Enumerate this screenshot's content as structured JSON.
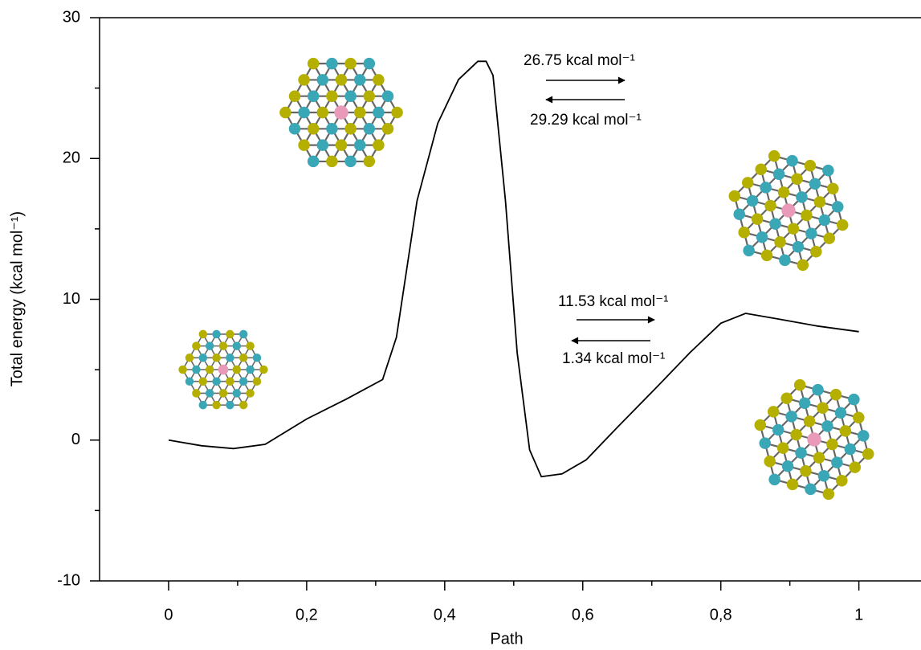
{
  "chart_data": {
    "type": "line",
    "xlabel": "Path",
    "ylabel": "Total energy (kcal mol⁻¹)",
    "x": [
      0,
      0.048,
      0.094,
      0.14,
      0.2,
      0.257,
      0.31,
      0.33,
      0.36,
      0.39,
      0.42,
      0.448,
      0.46,
      0.47,
      0.488,
      0.505,
      0.523,
      0.54,
      0.57,
      0.605,
      0.65,
      0.71,
      0.755,
      0.8,
      0.836,
      0.883,
      0.94,
      1.0
    ],
    "series": [
      {
        "color": "#000000",
        "values": [
          0,
          -0.4,
          -0.6,
          -0.3,
          1.5,
          2.9,
          4.3,
          7.3,
          17,
          22.5,
          25.6,
          26.9,
          26.9,
          25.9,
          17,
          6.2,
          -0.7,
          -2.6,
          -2.4,
          -1.4,
          0.9,
          3.9,
          6.2,
          8.3,
          9.0,
          8.6,
          8.1,
          7.7
        ]
      }
    ],
    "xlim": [
      -0.1,
      1.09
    ],
    "ylim": [
      -10,
      30
    ],
    "xticks": [
      {
        "value": 0,
        "label": "0"
      },
      {
        "value": 0.2,
        "label": "0,2"
      },
      {
        "value": 0.4,
        "label": "0,4"
      },
      {
        "value": 0.6,
        "label": "0,6"
      },
      {
        "value": 0.8,
        "label": "0,8"
      },
      {
        "value": 1,
        "label": "1"
      }
    ],
    "xminorticks": [
      0.1,
      0.3,
      0.5,
      0.7,
      0.9
    ],
    "yticks": [
      -10,
      0,
      10,
      20,
      30
    ],
    "yminorticks": [
      -5,
      5,
      15,
      25
    ],
    "annotations": [
      "26.75 kcal mol⁻¹",
      "29.29 kcal mol⁻¹",
      "11.53 kcal mol⁻¹",
      "1.34 kcal mol⁻¹"
    ]
  }
}
